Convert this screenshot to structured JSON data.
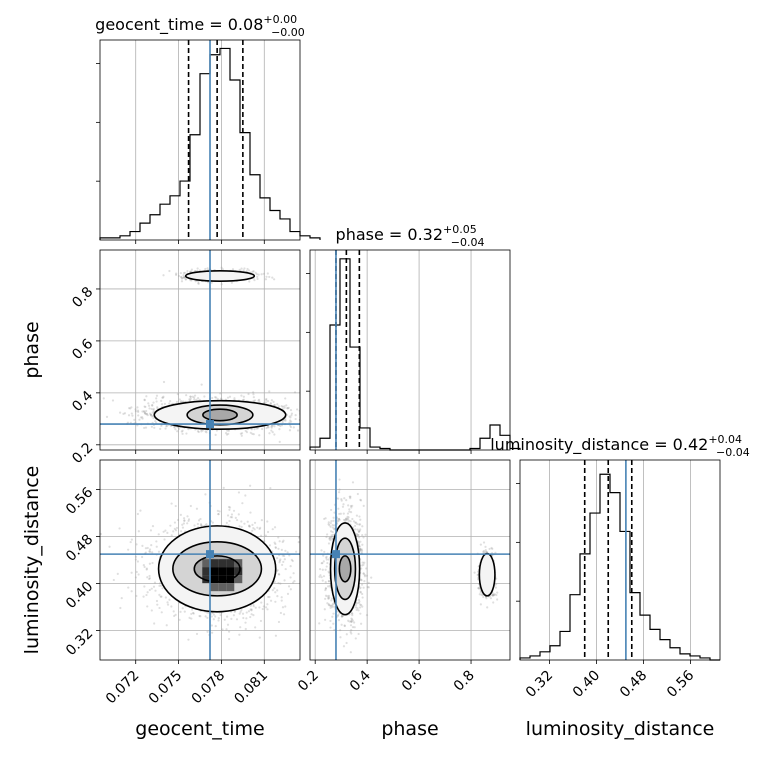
{
  "chart_data": {
    "type": "corner",
    "truth_color": "#4682b4",
    "contour_color": "#000000",
    "parameters": [
      {
        "name": "geocent_time",
        "label": "geocent_time",
        "title": "geocent_time = 0.08",
        "title_sup": "+0.00",
        "title_sub": "−0.00",
        "range": [
          0.0695,
          0.0835
        ],
        "ticks": [
          0.072,
          0.075,
          0.078,
          0.081
        ],
        "tick_labels": [
          "0.072",
          "0.075",
          "0.078",
          "0.081"
        ],
        "truth": 0.0772,
        "quantiles": [
          0.0757,
          0.0777,
          0.0795
        ],
        "hist": {
          "edges_from": 0.0695,
          "bin_width": 0.0007,
          "counts": [
            1,
            1,
            2,
            4,
            8,
            12,
            17,
            21,
            28,
            50,
            79,
            88,
            91,
            76,
            51,
            31,
            20,
            14,
            10,
            4,
            2,
            1
          ]
        },
        "hist_max": 95
      },
      {
        "name": "phase",
        "label": "phase",
        "title": "phase = 0.32",
        "title_sup": "+0.05",
        "title_sub": "−0.04",
        "range": [
          0.18,
          0.95
        ],
        "ticks": [
          0.2,
          0.4,
          0.6,
          0.8
        ],
        "tick_labels": [
          "0.2",
          "0.4",
          "0.6",
          "0.8"
        ],
        "truth": 0.28,
        "quantiles": [
          0.28,
          0.32,
          0.37
        ],
        "hist": {
          "edges_from": 0.18,
          "bin_width": 0.0385,
          "counts": [
            2,
            8,
            85,
            130,
            70,
            15,
            2,
            1,
            0,
            0,
            0,
            0,
            0,
            0,
            0,
            0,
            1,
            8,
            17,
            10,
            1
          ]
        },
        "hist_max": 136
      },
      {
        "name": "luminosity_distance",
        "label": "luminosity_distance",
        "title": "luminosity_distance = 0.42",
        "title_sup": "+0.04",
        "title_sub": "−0.04",
        "range": [
          0.27,
          0.61
        ],
        "ticks": [
          0.32,
          0.4,
          0.48,
          0.56
        ],
        "tick_labels": [
          "0.32",
          "0.40",
          "0.48",
          "0.56"
        ],
        "truth": 0.45,
        "quantiles": [
          0.38,
          0.42,
          0.46
        ],
        "hist": {
          "edges_from": 0.27,
          "bin_width": 0.017,
          "counts": [
            1,
            2,
            4,
            7,
            14,
            32,
            52,
            72,
            91,
            82,
            63,
            33,
            22,
            15,
            10,
            6,
            3,
            2,
            1,
            0
          ]
        },
        "hist_max": 98
      }
    ],
    "pairs": [
      {
        "x": "geocent_time",
        "y": "phase",
        "modes": [
          {
            "center": [
              0.0779,
              0.315
            ],
            "contours": [
              {
                "rx": 0.0012,
                "ry": 0.022
              },
              {
                "rx": 0.0023,
                "ry": 0.038
              },
              {
                "rx": 0.0046,
                "ry": 0.055
              }
            ],
            "core": {
              "rx": 0.0017,
              "ry": 0.012
            }
          },
          {
            "center": [
              0.0779,
              0.85
            ],
            "contours": [
              {
                "rx": 0.0024,
                "ry": 0.02
              }
            ]
          }
        ]
      },
      {
        "x": "geocent_time",
        "y": "luminosity_distance",
        "modes": [
          {
            "center": [
              0.0777,
              0.425
            ],
            "contours": [
              {
                "rx": 0.0016,
                "ry": 0.022
              },
              {
                "rx": 0.0031,
                "ry": 0.046
              },
              {
                "rx": 0.0041,
                "ry": 0.073
              }
            ],
            "core": {
              "rx": 0.0016,
              "ry": 0.03
            }
          }
        ]
      },
      {
        "x": "phase",
        "y": "luminosity_distance",
        "modes": [
          {
            "center": [
              0.315,
              0.425
            ],
            "contours": [
              {
                "rx": 0.022,
                "ry": 0.022
              },
              {
                "rx": 0.04,
                "ry": 0.052
              },
              {
                "rx": 0.056,
                "ry": 0.078
              }
            ],
            "core": {
              "rx": 0.012,
              "ry": 0.02
            }
          },
          {
            "center": [
              0.862,
              0.415
            ],
            "contours": [
              {
                "rx": 0.03,
                "ry": 0.036
              }
            ]
          }
        ]
      }
    ]
  }
}
